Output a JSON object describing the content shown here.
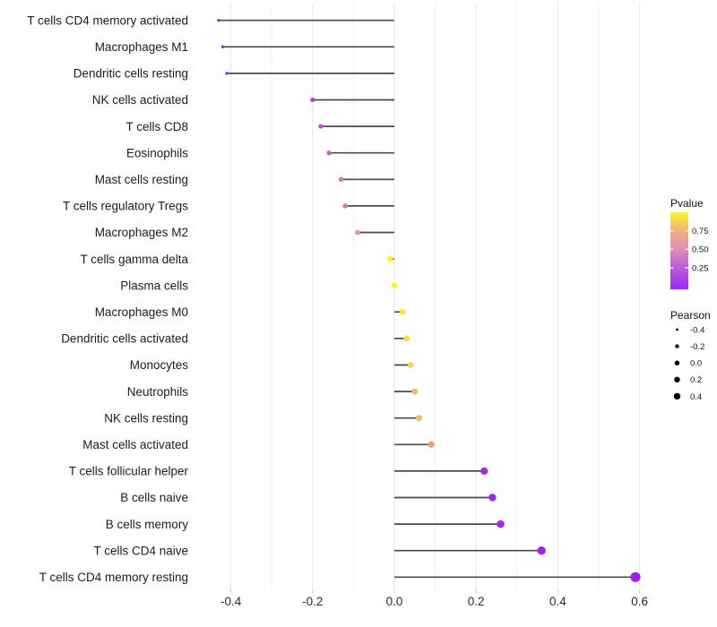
{
  "chart_data": {
    "type": "lollipop",
    "title": "",
    "xlabel": "",
    "ylabel": "",
    "x_ticks": [
      -0.4,
      -0.2,
      0.0,
      0.2,
      0.4,
      0.6
    ],
    "x_tick_labels": [
      "-0.4",
      "-0.2",
      "0.0",
      "0.2",
      "0.4",
      "0.6"
    ],
    "x_minor_ticks": [
      -0.3,
      -0.1,
      0.1,
      0.3,
      0.5
    ],
    "xlim": [
      -0.49,
      0.62
    ],
    "grid": "on",
    "rows": [
      {
        "label": "T cells CD4 memory activated",
        "pearson": -0.43,
        "color": "#7E22D4"
      },
      {
        "label": "Macrophages M1",
        "pearson": -0.42,
        "color": "#7E22D4"
      },
      {
        "label": "Dendritic cells resting",
        "pearson": -0.41,
        "color": "#8429DA"
      },
      {
        "label": "NK cells activated",
        "pearson": -0.2,
        "color": "#A73FD0"
      },
      {
        "label": "T cells CD8",
        "pearson": -0.18,
        "color": "#B950C5"
      },
      {
        "label": "Eosinophils",
        "pearson": -0.16,
        "color": "#C462BE"
      },
      {
        "label": "Mast cells resting",
        "pearson": -0.13,
        "color": "#CF7AAC"
      },
      {
        "label": "T cells regulatory  Tregs",
        "pearson": -0.12,
        "color": "#CF7CAA"
      },
      {
        "label": "Macrophages M2",
        "pearson": -0.09,
        "color": "#DF9A92"
      },
      {
        "label": "T cells gamma delta",
        "pearson": -0.01,
        "color": "#F7F313"
      },
      {
        "label": "Plasma cells",
        "pearson": 0.0,
        "color": "#F8F618"
      },
      {
        "label": "Macrophages M0",
        "pearson": 0.02,
        "color": "#F6E92C"
      },
      {
        "label": "Dendritic cells activated",
        "pearson": 0.03,
        "color": "#F5E136"
      },
      {
        "label": "Monocytes",
        "pearson": 0.04,
        "color": "#F3D44B"
      },
      {
        "label": "Neutrophils",
        "pearson": 0.05,
        "color": "#EFBD66"
      },
      {
        "label": "NK cells resting",
        "pearson": 0.06,
        "color": "#EDB56D"
      },
      {
        "label": "Mast cells activated",
        "pearson": 0.09,
        "color": "#E69F7F"
      },
      {
        "label": "T cells follicular helper",
        "pearson": 0.22,
        "color": "#9C30E5"
      },
      {
        "label": "B cells naive",
        "pearson": 0.24,
        "color": "#9C2DE7"
      },
      {
        "label": "B cells memory",
        "pearson": 0.26,
        "color": "#9D2BE9"
      },
      {
        "label": "T cells CD4 naive",
        "pearson": 0.36,
        "color": "#9C27EC"
      },
      {
        "label": "T cells CD4 memory resting",
        "pearson": 0.59,
        "color": "#9D20F0"
      }
    ],
    "legend": {
      "pvalue": {
        "title": "Pvalue",
        "tick_labels": [
          "0.75",
          "0.50",
          "0.25"
        ],
        "gradient_stops": [
          {
            "offset": 0.0,
            "color": "#FBF823"
          },
          {
            "offset": 0.24,
            "color": "#EFB080"
          },
          {
            "offset": 0.48,
            "color": "#DE8FB4"
          },
          {
            "offset": 0.72,
            "color": "#BE5BDC"
          },
          {
            "offset": 1.0,
            "color": "#9829F4"
          }
        ]
      },
      "pearson": {
        "title": "Pearson",
        "size_labels": [
          "-0.4",
          "-0.2",
          "0.0",
          "0.2",
          "0.4"
        ]
      }
    },
    "style_colors": {
      "stem": "#4A4A4A",
      "grid_major": "#E6E6E6",
      "grid_minor": "#F2F2F2",
      "axis_tick": "#C9C9C9",
      "legend_dot": "#000000",
      "background": "#FFFFFF"
    }
  }
}
